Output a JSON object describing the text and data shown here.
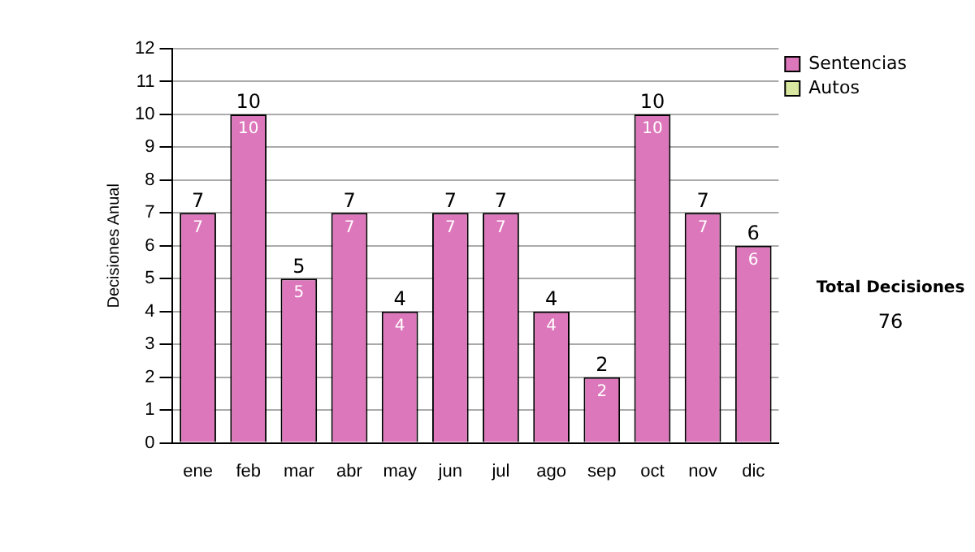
{
  "chart_data": {
    "type": "bar",
    "ylabel": "Decisiones Anual",
    "categories": [
      "ene",
      "feb",
      "mar",
      "abr",
      "may",
      "jun",
      "jul",
      "ago",
      "sep",
      "oct",
      "nov",
      "dic"
    ],
    "stacked": true,
    "series": [
      {
        "name": "Sentencias",
        "color": "#dd77bb",
        "values": [
          7,
          10,
          5,
          7,
          4,
          7,
          7,
          4,
          2,
          10,
          7,
          6
        ],
        "value_labels": [
          "7",
          "10",
          "5",
          "7",
          "4",
          "7",
          "7",
          "4",
          "2",
          "10",
          "7",
          "6"
        ]
      },
      {
        "name": "Autos",
        "color": "#d8e8a0",
        "values": [
          0,
          0,
          0,
          0,
          0,
          0,
          0,
          0,
          0,
          0,
          0,
          0
        ]
      }
    ],
    "totals": [
      "7",
      "10",
      "5",
      "7",
      "4",
      "7",
      "7",
      "4",
      "2",
      "10",
      "7",
      "6"
    ],
    "ylim": [
      0,
      12
    ],
    "yticks": [
      0,
      1,
      2,
      3,
      4,
      5,
      6,
      7,
      8,
      9,
      10,
      11,
      12
    ],
    "grid": "y",
    "legend": "right",
    "annotations": [
      "Total Decisiones",
      "76"
    ]
  }
}
